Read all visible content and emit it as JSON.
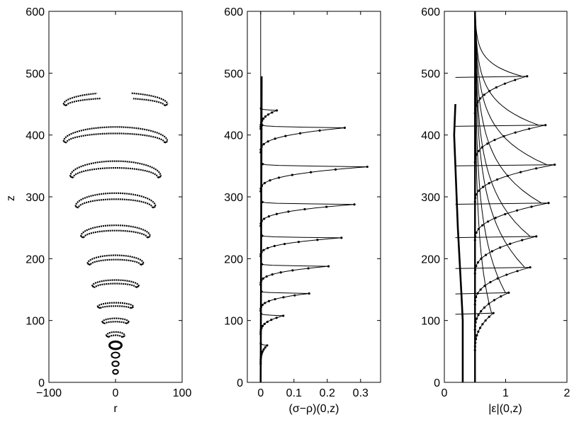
{
  "chart_data": [
    {
      "type": "scatter",
      "title": "",
      "xlabel": "r",
      "ylabel": "z",
      "xlim": [
        -100,
        100
      ],
      "ylim": [
        0,
        600
      ],
      "xticks": [
        "−100",
        "0",
        "100"
      ],
      "yticks": [
        "0",
        "100",
        "200",
        "300",
        "400",
        "500",
        "600"
      ],
      "grid": false,
      "shells": [
        {
          "z_center": 17,
          "half_width": 4,
          "height": 7,
          "closed": true
        },
        {
          "z_center": 30,
          "half_width": 5,
          "height": 8,
          "closed": true
        },
        {
          "z_center": 44,
          "half_width": 6,
          "height": 9,
          "closed": true
        },
        {
          "z_center": 60,
          "half_width": 9,
          "height": 12,
          "closed": true
        },
        {
          "z_center": 78,
          "half_width": 14,
          "height": 14,
          "closed": false
        },
        {
          "z_center": 100,
          "half_width": 20,
          "height": 14,
          "closed": false
        },
        {
          "z_center": 125,
          "half_width": 27,
          "height": 15,
          "closed": false
        },
        {
          "z_center": 160,
          "half_width": 35,
          "height": 22,
          "closed": false
        },
        {
          "z_center": 198,
          "half_width": 42,
          "height": 30,
          "closed": false
        },
        {
          "z_center": 244,
          "half_width": 52,
          "height": 40,
          "closed": false
        },
        {
          "z_center": 294,
          "half_width": 60,
          "height": 48,
          "closed": false
        },
        {
          "z_center": 344,
          "half_width": 68,
          "height": 55,
          "closed": false
        },
        {
          "z_center": 400,
          "half_width": 78,
          "height": 52,
          "closed": false
        },
        {
          "z_center": 458,
          "half_width": 78,
          "height": 42,
          "closed": false,
          "split": true
        }
      ]
    },
    {
      "type": "line",
      "title": "",
      "xlabel": "(σ−ρ)(0,z)",
      "ylabel": "",
      "xlim": [
        -0.04,
        0.36
      ],
      "ylim": [
        0,
        600
      ],
      "xticks": [
        "0",
        "0.1",
        "0.2",
        "0.3"
      ],
      "yticks": [
        "0",
        "100",
        "200",
        "300",
        "400",
        "500",
        "600"
      ],
      "grid": false,
      "spikes": [
        {
          "z": 60,
          "peak": 0.02,
          "width": 30
        },
        {
          "z": 108,
          "peak": 0.07,
          "width": 30
        },
        {
          "z": 144,
          "peak": 0.15,
          "width": 28
        },
        {
          "z": 188,
          "peak": 0.21,
          "width": 30
        },
        {
          "z": 234,
          "peak": 0.25,
          "width": 30
        },
        {
          "z": 288,
          "peak": 0.29,
          "width": 35
        },
        {
          "z": 349,
          "peak": 0.33,
          "width": 40
        },
        {
          "z": 412,
          "peak": 0.26,
          "width": 40
        },
        {
          "z": 440,
          "peak": 0.05,
          "width": 30
        }
      ]
    },
    {
      "type": "line",
      "title": "",
      "xlabel": "|ε|(0,z)",
      "ylabel": "",
      "xlim": [
        0,
        2
      ],
      "ylim": [
        0,
        600
      ],
      "xticks": [
        "0",
        "1",
        "2"
      ],
      "yticks": [
        "0",
        "100",
        "200",
        "300",
        "400",
        "500",
        "600"
      ],
      "grid": false,
      "vertical_line_x": 0.5,
      "profiles": [
        {
          "z_front": 112,
          "peak": 0.8
        },
        {
          "z_front": 145,
          "peak": 1.05
        },
        {
          "z_front": 186,
          "peak": 1.4
        },
        {
          "z_front": 236,
          "peak": 1.5
        },
        {
          "z_front": 290,
          "peak": 1.7
        },
        {
          "z_front": 352,
          "peak": 1.8
        },
        {
          "z_front": 416,
          "peak": 1.65
        },
        {
          "z_front": 495,
          "peak": 1.35
        }
      ]
    }
  ]
}
